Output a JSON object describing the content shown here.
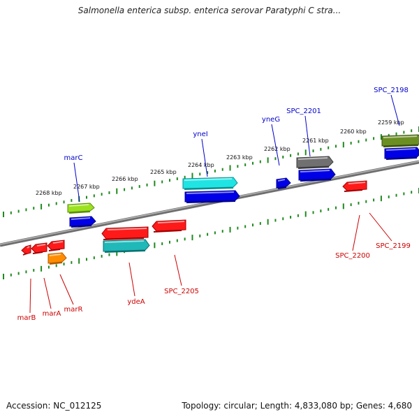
{
  "title": "Salmonella enterica subsp. enterica serovar Paratyphi C stra...",
  "footer": {
    "accession": "Accession: NC_012125",
    "stats": "Topology: circular; Length: 4,833,080 bp; Genes: 4,680"
  },
  "colors": {
    "backbone": "#8a8a8a",
    "tick_scale": "#1e8a1e",
    "forward_label": "#0000cc",
    "reverse_label": "#cc0000"
  },
  "scale": {
    "kbp_labels": [
      "2268 kbp",
      "2267 kbp",
      "2266 kbp",
      "2265 kbp",
      "2264 kbp",
      "2263 kbp",
      "2262 kbp",
      "2261 kbp",
      "2260 kbp",
      "2259 kbp"
    ]
  },
  "forward_labels": [
    "marC",
    "yneI",
    "yneG",
    "SPC_2201",
    "SPC_2198"
  ],
  "reverse_labels": [
    "marB",
    "marA",
    "marR",
    "ydeA",
    "SPC_2205",
    "SPC_2200",
    "SPC_2199"
  ]
}
